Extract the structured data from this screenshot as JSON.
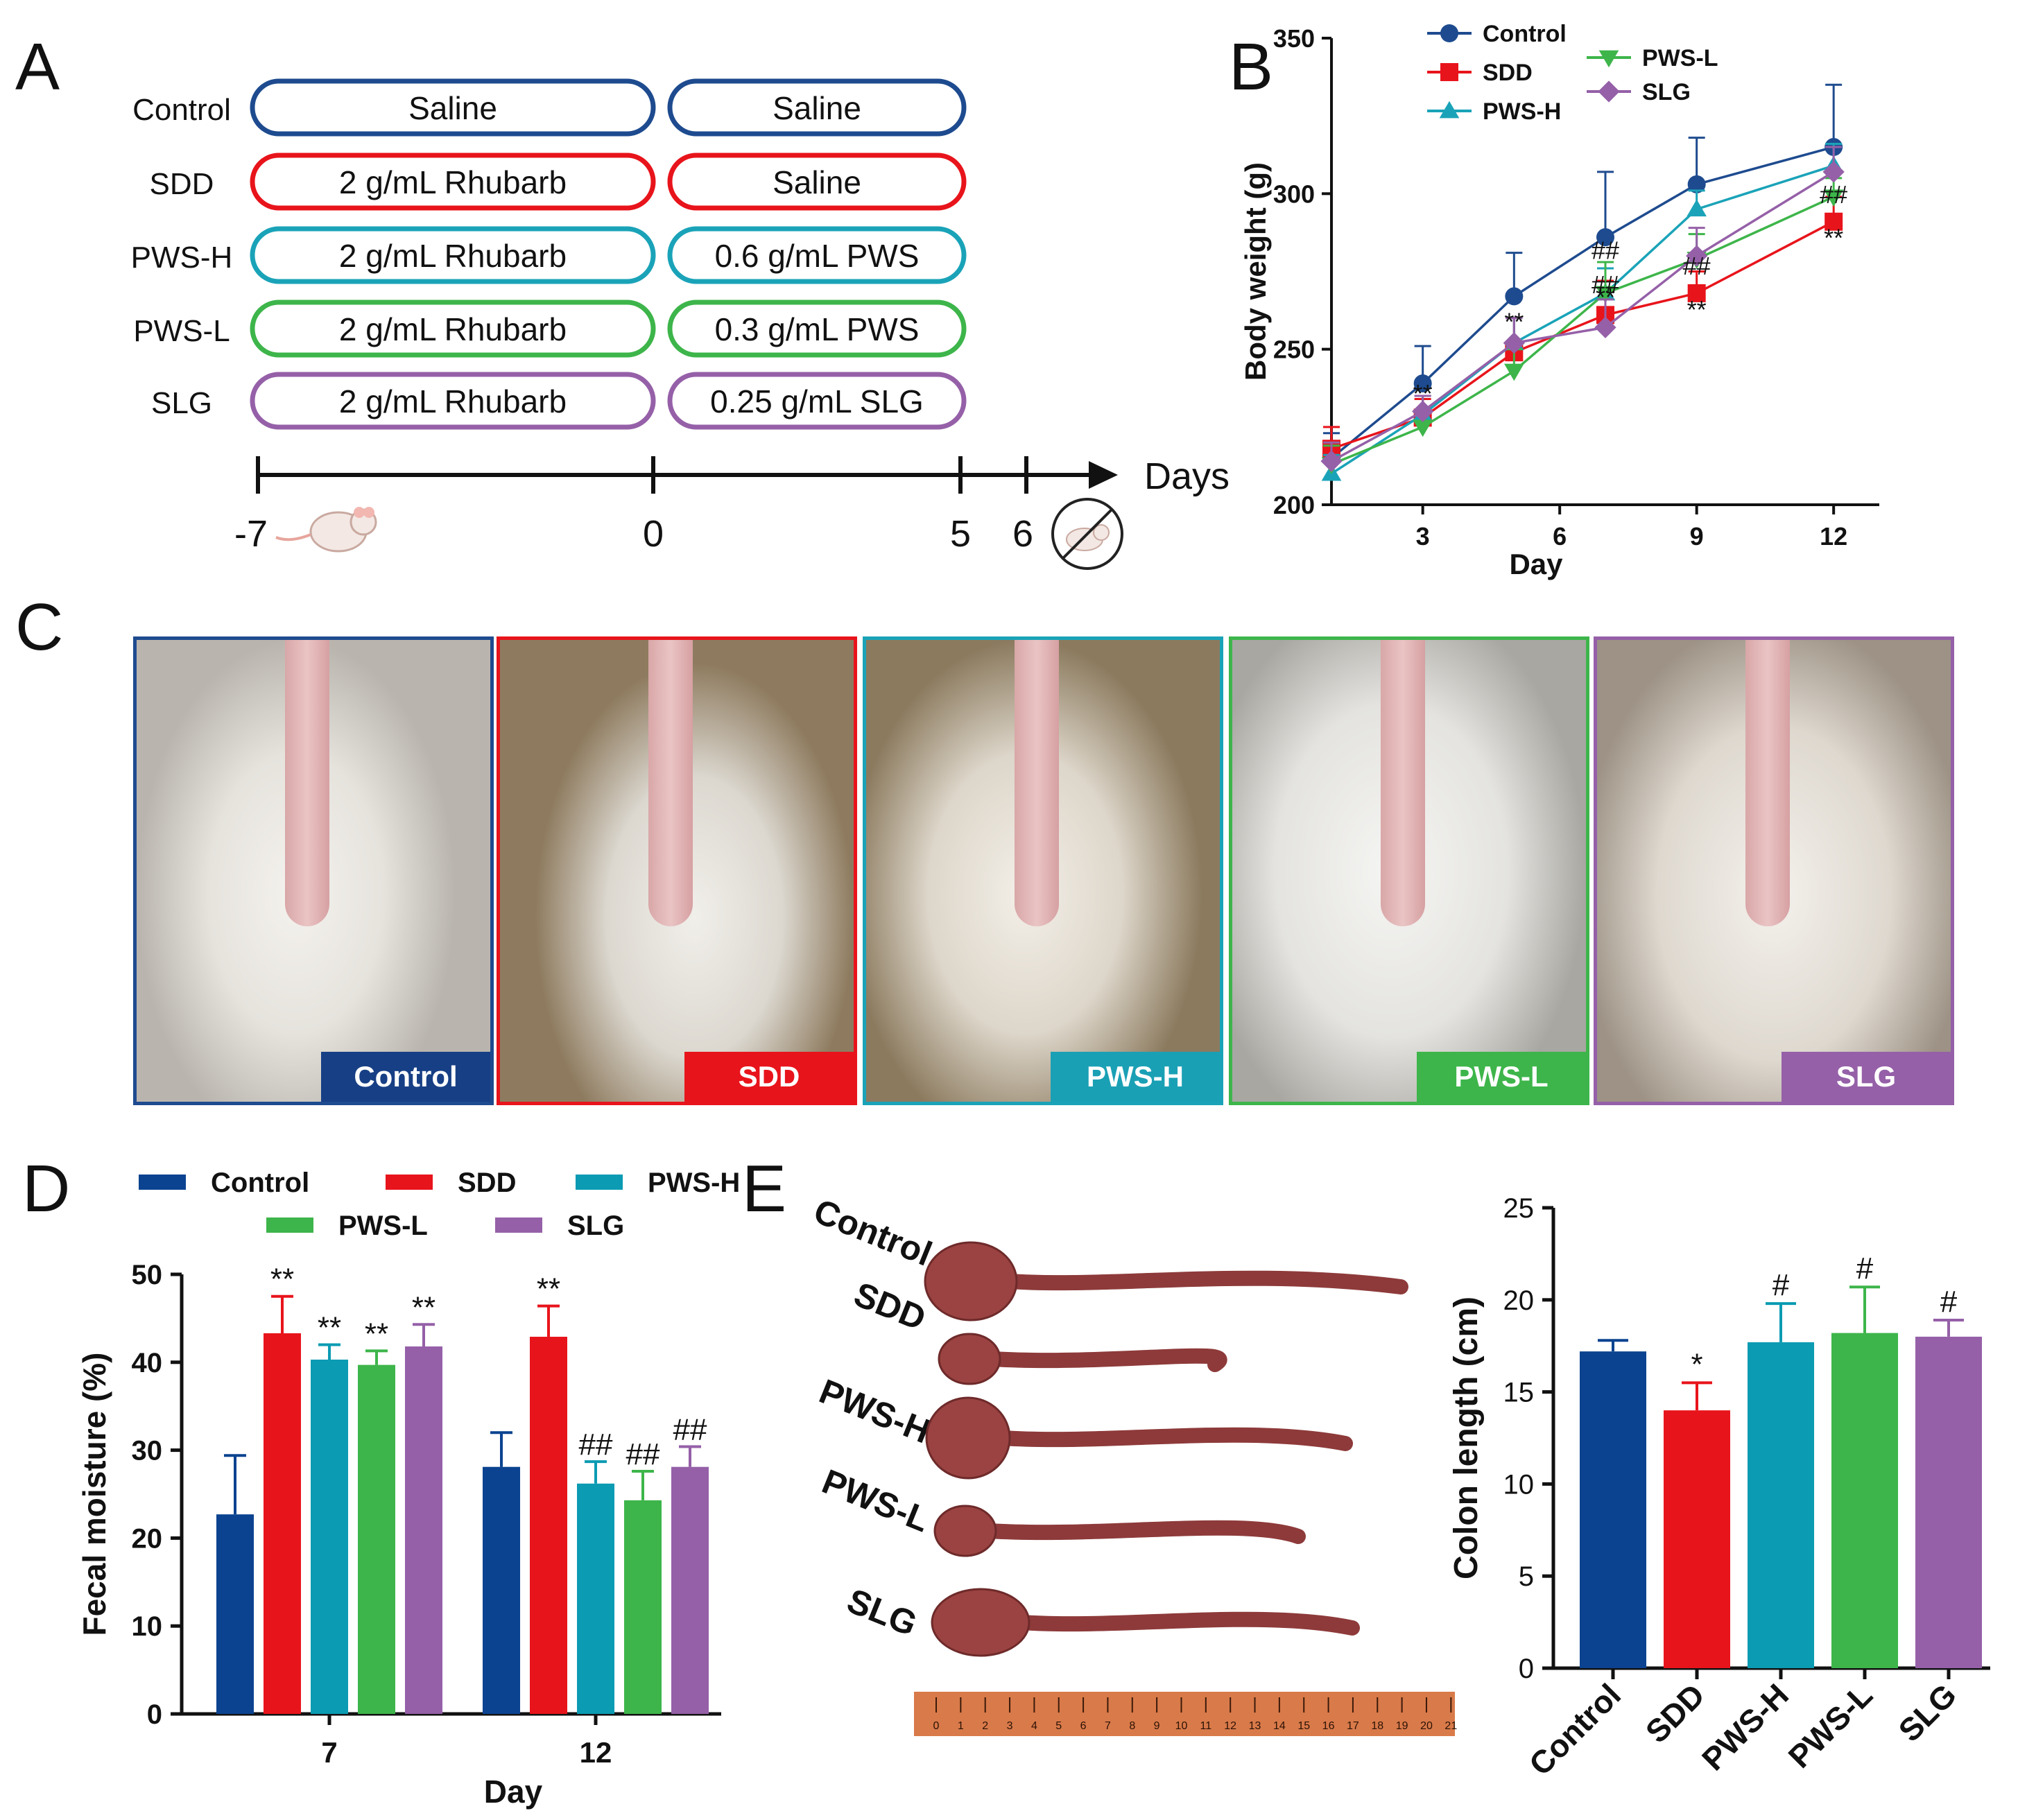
{
  "panels": {
    "a": "A",
    "b": "B",
    "c": "C",
    "d": "D",
    "e": "E"
  },
  "colors": {
    "Control": "#1e4b8f",
    "SDD": "#e8141b",
    "PWS-H": "#1aa3b8",
    "PWS-L": "#3db54a",
    "SLG": "#9560a8",
    "bar_control": "#0b4390",
    "bar_pwsh": "#0b9bb3"
  },
  "design": {
    "groups": [
      {
        "name": "Control",
        "phase1": "Saline",
        "phase2": "Saline"
      },
      {
        "name": "SDD",
        "phase1": "2 g/mL  Rhubarb",
        "phase2": "Saline"
      },
      {
        "name": "PWS-H",
        "phase1": "2 g/mL  Rhubarb",
        "phase2": "0.6 g/mL  PWS"
      },
      {
        "name": "PWS-L",
        "phase1": "2 g/mL   Rhubarb",
        "phase2": "0.3 g/mL  PWS"
      },
      {
        "name": "SLG",
        "phase1": "2 g/mL  Rhubarb",
        "phase2": "0.25 g/mL  SLG"
      }
    ],
    "timeline_ticks": [
      "-7",
      "0",
      "5",
      "6"
    ],
    "timeline_label": "Days",
    "icons": [
      "rat-icon",
      "no-rat-icon"
    ]
  },
  "chart_data": [
    {
      "type": "line",
      "panel": "B",
      "xlabel": "Day",
      "ylabel": "Body weight (g)",
      "x_ticks": [
        3,
        6,
        9,
        12
      ],
      "xlim": [
        1,
        13
      ],
      "ylim": [
        200,
        350
      ],
      "y_ticks": [
        200,
        250,
        300,
        350
      ],
      "legend": "top-left, two columns",
      "x": [
        1,
        3,
        5,
        7,
        9,
        12
      ],
      "series": [
        {
          "name": "Control",
          "marker": "circle",
          "values": [
            215,
            239,
            267,
            286,
            303,
            315
          ],
          "err": [
            8,
            12,
            14,
            21,
            15,
            20
          ]
        },
        {
          "name": "SDD",
          "marker": "square",
          "values": [
            218,
            228,
            249,
            261,
            268,
            291
          ],
          "err": [
            7,
            6,
            11,
            11,
            7,
            8
          ]
        },
        {
          "name": "PWS-H",
          "marker": "triangle-up",
          "values": [
            210,
            229,
            252,
            268,
            295,
            309
          ],
          "err": [
            6,
            6,
            8,
            8,
            6,
            7
          ]
        },
        {
          "name": "PWS-L",
          "marker": "triangle-down",
          "values": [
            213,
            225,
            243,
            268,
            279,
            299
          ],
          "err": [
            6,
            5,
            7,
            10,
            8,
            6
          ]
        },
        {
          "name": "SLG",
          "marker": "diamond",
          "values": [
            214,
            230,
            252,
            257,
            280,
            307
          ],
          "err": [
            6,
            5,
            8,
            9,
            9,
            8
          ]
        }
      ],
      "annotations": [
        {
          "text": "**",
          "x": 3,
          "y": 233
        },
        {
          "text": "**",
          "x": 5,
          "y": 256
        },
        {
          "text": "**",
          "x": 7,
          "y": 264
        },
        {
          "text": "##",
          "x": 7,
          "y": 279
        },
        {
          "text": "##",
          "x": 7,
          "y": 268
        },
        {
          "text": "**",
          "x": 9,
          "y": 260
        },
        {
          "text": "##",
          "x": 9,
          "y": 274
        },
        {
          "text": "**",
          "x": 12,
          "y": 283
        },
        {
          "text": "##",
          "x": 12,
          "y": 297
        }
      ]
    },
    {
      "type": "bar",
      "panel": "D",
      "categories": [
        "7",
        "12"
      ],
      "xlabel": "Day",
      "ylabel": "Fecal moisture (%)",
      "ylim": [
        0,
        50
      ],
      "y_ticks": [
        0,
        10,
        20,
        30,
        40,
        50
      ],
      "legend": "top, three columns",
      "series": [
        {
          "name": "Control",
          "values": [
            22.7,
            28.1
          ],
          "err": [
            6.7,
            3.9
          ],
          "sig": [
            "",
            ""
          ]
        },
        {
          "name": "SDD",
          "values": [
            43.3,
            42.9
          ],
          "err": [
            4.2,
            3.5
          ],
          "sig": [
            "**",
            "**"
          ]
        },
        {
          "name": "PWS-H",
          "values": [
            40.3,
            26.2
          ],
          "err": [
            1.7,
            2.5
          ],
          "sig": [
            "**",
            "##"
          ]
        },
        {
          "name": "PWS-L",
          "values": [
            39.7,
            24.3
          ],
          "err": [
            1.6,
            3.3
          ],
          "sig": [
            "**",
            "##"
          ]
        },
        {
          "name": "SLG",
          "values": [
            41.8,
            28.1
          ],
          "err": [
            2.5,
            2.3
          ],
          "sig": [
            "**",
            "##"
          ]
        }
      ]
    },
    {
      "type": "bar",
      "panel": "E",
      "categories": [
        "Control",
        "SDD",
        "PWS-H",
        "PWS-L",
        "SLG"
      ],
      "values": [
        17.2,
        14.0,
        17.7,
        18.2,
        18.0
      ],
      "err": [
        0.6,
        1.5,
        2.1,
        2.5,
        0.9
      ],
      "sig": [
        "",
        "*",
        "#",
        "#",
        "#"
      ],
      "ylabel": "Colon length (cm)",
      "ylim": [
        0,
        25
      ],
      "y_ticks": [
        0,
        5,
        10,
        15,
        20,
        25
      ]
    }
  ],
  "photos": [
    {
      "label": "Control",
      "border": "#1e4b8f",
      "label_bg": "#173f85"
    },
    {
      "label": "SDD",
      "border": "#e8141b",
      "label_bg": "#e8141b"
    },
    {
      "label": "PWS-H",
      "border": "#1aa3b8",
      "label_bg": "#1aa0b5"
    },
    {
      "label": "PWS-L",
      "border": "#3db54a",
      "label_bg": "#3db54a"
    },
    {
      "label": "SLG",
      "border": "#9560a8",
      "label_bg": "#9560a8"
    }
  ],
  "colon_labels": [
    "Control",
    "SDD",
    "PWS-H",
    "PWS-L",
    "SLG"
  ],
  "ruler_ticks": [
    "0",
    "1",
    "2",
    "3",
    "4",
    "5",
    "6",
    "7",
    "8",
    "9",
    "10",
    "11",
    "12",
    "13",
    "14",
    "15",
    "16",
    "17",
    "18",
    "19",
    "20",
    "21"
  ]
}
